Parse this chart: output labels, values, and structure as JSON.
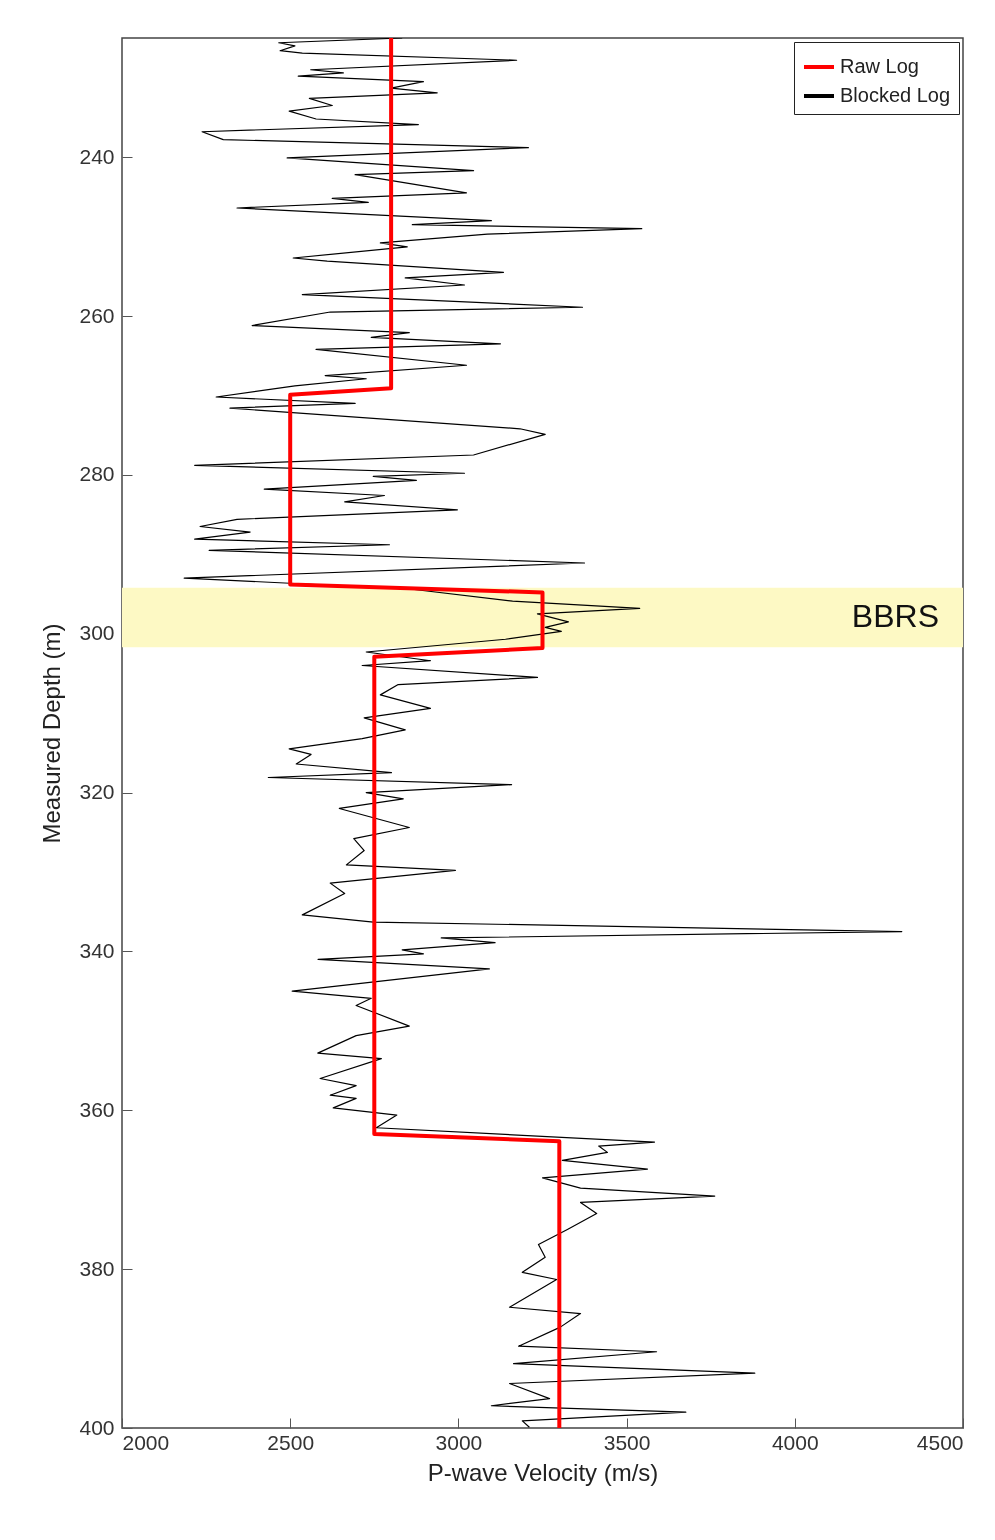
{
  "chart_data": {
    "type": "line",
    "xlabel": "P-wave Velocity (m/s)",
    "ylabel": "Measured Depth (m)",
    "xlim": [
      2000,
      4500
    ],
    "xticks": [
      2000,
      2500,
      3000,
      3500,
      4000,
      4500
    ],
    "ylim": [
      400,
      225
    ],
    "yticks": [
      240,
      260,
      280,
      300,
      320,
      340,
      360,
      380,
      400
    ],
    "grid": false,
    "legend": "top right",
    "bands": [
      {
        "axis": "y",
        "from": 294.2,
        "to": 301.7,
        "label": "BBRS",
        "color": "#fdf9c4"
      }
    ],
    "series": [
      {
        "name": "Raw Log",
        "color": "#ff0000",
        "x": [
          2800,
          2800,
          2500,
          2500,
          3250,
          3250,
          2750,
          2750,
          3300,
          3300
        ],
        "values": [
          225,
          269.1,
          269.9,
          293.8,
          294.8,
          301.8,
          302.9,
          363,
          363.9,
          400
        ]
      },
      {
        "name": "Blocked Log",
        "color": "#000000",
        "x": [
          2833,
          2466,
          2514,
          2470,
          2536,
          3173,
          2561,
          2658,
          2524,
          2896,
          2800,
          2937,
          2557,
          2625,
          2497,
          2577,
          2881,
          2238,
          2301,
          3208,
          2491,
          3045,
          2693,
          3024,
          2625,
          2732,
          2342,
          3098,
          2863,
          3545,
          3086,
          2768,
          2848,
          2509,
          2610,
          3134,
          2842,
          3018,
          2536,
          3369,
          2619,
          2387,
          2854,
          2741,
          3125,
          2577,
          3024,
          2604,
          2726,
          2514,
          2280,
          2693,
          2321,
          3183,
          3258,
          3045,
          2216,
          3018,
          2747,
          2875,
          2423,
          2780,
          2662,
          2997,
          2342,
          2232,
          2381,
          2216,
          2795,
          2259,
          3375,
          2185,
          2863,
          3161,
          3539,
          3235,
          3327,
          3258,
          3306,
          3140,
          2726,
          2917,
          2714,
          3235,
          2821,
          2768,
          2917,
          2720,
          2842,
          2714,
          2497,
          2562,
          2518,
          2801,
          2435,
          3158,
          2726,
          2836,
          2646,
          2854,
          2689,
          2720,
          2667,
          2991,
          2619,
          2662,
          2536,
          2747,
          4318,
          2949,
          3109,
          2833,
          2896,
          2583,
          3092,
          2506,
          2741,
          2696,
          2854,
          2696,
          2582,
          2771,
          2589,
          2696,
          2619,
          2696,
          2628,
          2817,
          2756,
          3583,
          3417,
          3443,
          3309,
          3562,
          3250,
          3363,
          3762,
          3363,
          3411,
          3324,
          3238,
          3258,
          3190,
          3292,
          3152,
          3363,
          3303,
          3179,
          3589,
          3164,
          3881,
          3152,
          3271,
          3098,
          3676,
          3190,
          3211
        ],
        "values": [
          225,
          225.6,
          226,
          226.6,
          226.9,
          227.8,
          229,
          229.4,
          229.8,
          230.5,
          231.3,
          231.9,
          232.6,
          233.5,
          234.2,
          235.2,
          235.9,
          236.8,
          237.8,
          238.8,
          240.1,
          241.7,
          242.2,
          244.5,
          245.2,
          245.7,
          246.4,
          248,
          248.5,
          249,
          249.7,
          250.8,
          251.3,
          252.7,
          253.1,
          254.5,
          255.2,
          256.1,
          257.3,
          258.9,
          259.5,
          261.2,
          262.1,
          262.7,
          263.5,
          264.2,
          266.2,
          267.5,
          267.9,
          268.8,
          270.2,
          271,
          271.6,
          274.2,
          274.9,
          277.5,
          278.8,
          279.8,
          280.2,
          280.7,
          281.8,
          282.6,
          283.4,
          284.4,
          285.6,
          286.5,
          287.2,
          288.1,
          288.8,
          289.5,
          291.1,
          293,
          294.4,
          295.9,
          296.8,
          297.5,
          298.5,
          299.2,
          299.7,
          300.7,
          302.3,
          303.4,
          304,
          305.5,
          306.4,
          307.7,
          309.4,
          310.6,
          312.1,
          313.2,
          314.5,
          315.2,
          316.4,
          317.5,
          318.1,
          319,
          320,
          320.8,
          322,
          324.4,
          325.8,
          327.3,
          329.1,
          329.8,
          331.4,
          332.7,
          335.4,
          336.3,
          337.5,
          338.3,
          338.9,
          339.8,
          340.3,
          341,
          342.2,
          345,
          345.9,
          346.8,
          349.4,
          350.6,
          352.8,
          353.5,
          356,
          356.9,
          358.1,
          358.5,
          359.7,
          360.6,
          362.2,
          364,
          364.5,
          365.3,
          366.3,
          367.4,
          368.5,
          369.8,
          370.8,
          371.6,
          373,
          375,
          376.9,
          378.5,
          380.4,
          381.3,
          384.8,
          385.6,
          387.3,
          389.7,
          390.4,
          391.9,
          393.1,
          394.4,
          396.3,
          397.2,
          398,
          399.1,
          399.9
        ]
      }
    ]
  }
}
